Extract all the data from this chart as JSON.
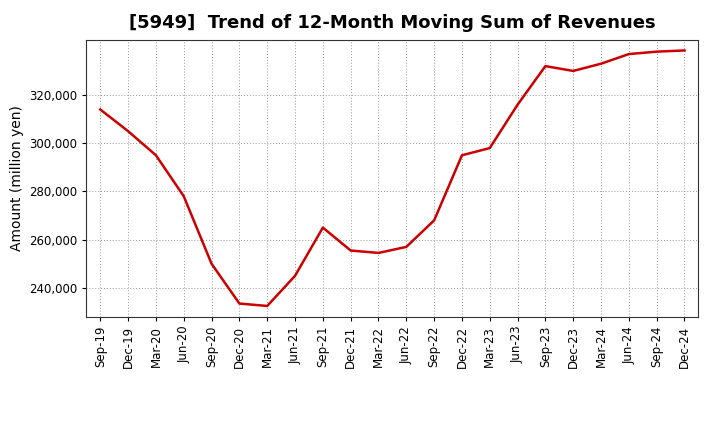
{
  "title": "[5949]  Trend of 12-Month Moving Sum of Revenues",
  "ylabel": "Amount (million yen)",
  "line_color": "#cc0000",
  "background_color": "#ffffff",
  "grid_color": "#999999",
  "x_labels": [
    "Sep-19",
    "Dec-19",
    "Mar-20",
    "Jun-20",
    "Sep-20",
    "Dec-20",
    "Mar-21",
    "Jun-21",
    "Sep-21",
    "Dec-21",
    "Mar-22",
    "Jun-22",
    "Sep-22",
    "Dec-22",
    "Mar-23",
    "Jun-23",
    "Sep-23",
    "Dec-23",
    "Mar-24",
    "Jun-24",
    "Sep-24",
    "Dec-24"
  ],
  "y_values": [
    314000,
    305000,
    295000,
    278000,
    250000,
    233500,
    232500,
    245000,
    265000,
    255500,
    254500,
    257000,
    268000,
    295000,
    298000,
    316000,
    332000,
    330000,
    333000,
    337000,
    338000,
    338500
  ],
  "ylim": [
    228000,
    343000
  ],
  "yticks": [
    240000,
    260000,
    280000,
    300000,
    320000
  ],
  "title_fontsize": 13,
  "label_fontsize": 10,
  "tick_fontsize": 8.5
}
